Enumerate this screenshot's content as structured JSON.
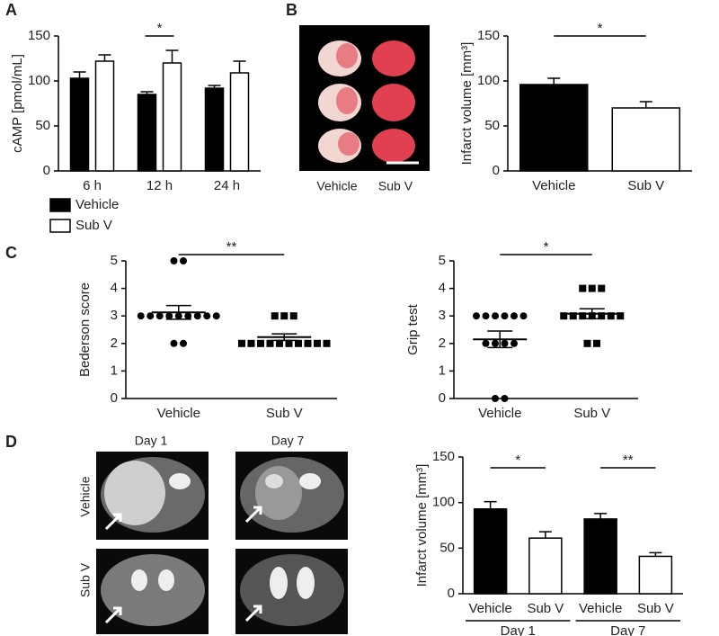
{
  "labels": {
    "panels": [
      "A",
      "B",
      "C",
      "D"
    ],
    "ttc_captions": [
      "Vehicle",
      "Sub V"
    ],
    "mri_columns": [
      "Day 1",
      "Day 7"
    ],
    "mri_rows": [
      "Vehicle",
      "Sub V"
    ]
  },
  "chart_data": [
    {
      "type": "bar",
      "y_label": "cAMP [pmol/mL]",
      "categories": [
        "6 h",
        "12 h",
        "24 h"
      ],
      "series": [
        {
          "name": "Vehicle",
          "color": "#000000",
          "values": [
            103,
            85,
            92
          ],
          "errors": [
            7,
            3,
            3
          ]
        },
        {
          "name": "Sub V",
          "color": "#ffffff",
          "values": [
            122,
            120,
            109
          ],
          "errors": [
            7,
            14,
            13
          ]
        }
      ],
      "ylim": [
        0,
        150
      ],
      "yticks": [
        0,
        50,
        100,
        150
      ],
      "significance": [
        null,
        "*",
        null
      ]
    },
    {
      "type": "bar",
      "y_label": "Infarct volume [mm³]",
      "categories": [
        "Vehicle",
        "Sub V"
      ],
      "values": [
        96,
        70
      ],
      "errors": [
        7,
        7
      ],
      "colors": [
        "#000000",
        "#ffffff"
      ],
      "ylim": [
        0,
        150
      ],
      "yticks": [
        0,
        50,
        100,
        150
      ],
      "significance": "*"
    },
    {
      "type": "dot",
      "y_label": "Bederson score",
      "categories": [
        "Vehicle",
        "Sub V"
      ],
      "markers": [
        "circle",
        "square"
      ],
      "points": [
        [
          5,
          5,
          3,
          3,
          3,
          3,
          3,
          3,
          3,
          3,
          3,
          2,
          2
        ],
        [
          3,
          3,
          3,
          2,
          2,
          2,
          2,
          2,
          2,
          2,
          2,
          2,
          2
        ]
      ],
      "mean": [
        3.13,
        2.23
      ],
      "sem": [
        0.25,
        0.12
      ],
      "ylim": [
        0,
        5
      ],
      "yticks": [
        0,
        1,
        2,
        3,
        4,
        5
      ],
      "significance": "**"
    },
    {
      "type": "dot",
      "y_label": "Grip test",
      "categories": [
        "Vehicle",
        "Sub V"
      ],
      "markers": [
        "circle",
        "square"
      ],
      "points": [
        [
          3,
          3,
          3,
          3,
          3,
          3,
          2,
          2,
          2,
          2,
          0,
          0
        ],
        [
          4,
          4,
          4,
          3,
          3,
          3,
          3,
          3,
          3,
          3,
          2,
          2
        ]
      ],
      "mean": [
        2.15,
        3.08
      ],
      "sem": [
        0.3,
        0.18
      ],
      "ylim": [
        0,
        5
      ],
      "yticks": [
        0,
        1,
        2,
        3,
        4,
        5
      ],
      "significance": "*"
    },
    {
      "type": "bar",
      "y_label": "Infarct volume [mm³]",
      "categories": [
        "Vehicle",
        "Sub V",
        "Vehicle",
        "Sub V"
      ],
      "groups": [
        "Day 1",
        "Day 7"
      ],
      "values": [
        93,
        61,
        82,
        41
      ],
      "errors": [
        8,
        7,
        6,
        4
      ],
      "colors": [
        "#000000",
        "#ffffff"
      ],
      "ylim": [
        0,
        150
      ],
      "yticks": [
        0,
        50,
        100,
        150
      ],
      "significance": [
        "*",
        "**"
      ]
    }
  ]
}
